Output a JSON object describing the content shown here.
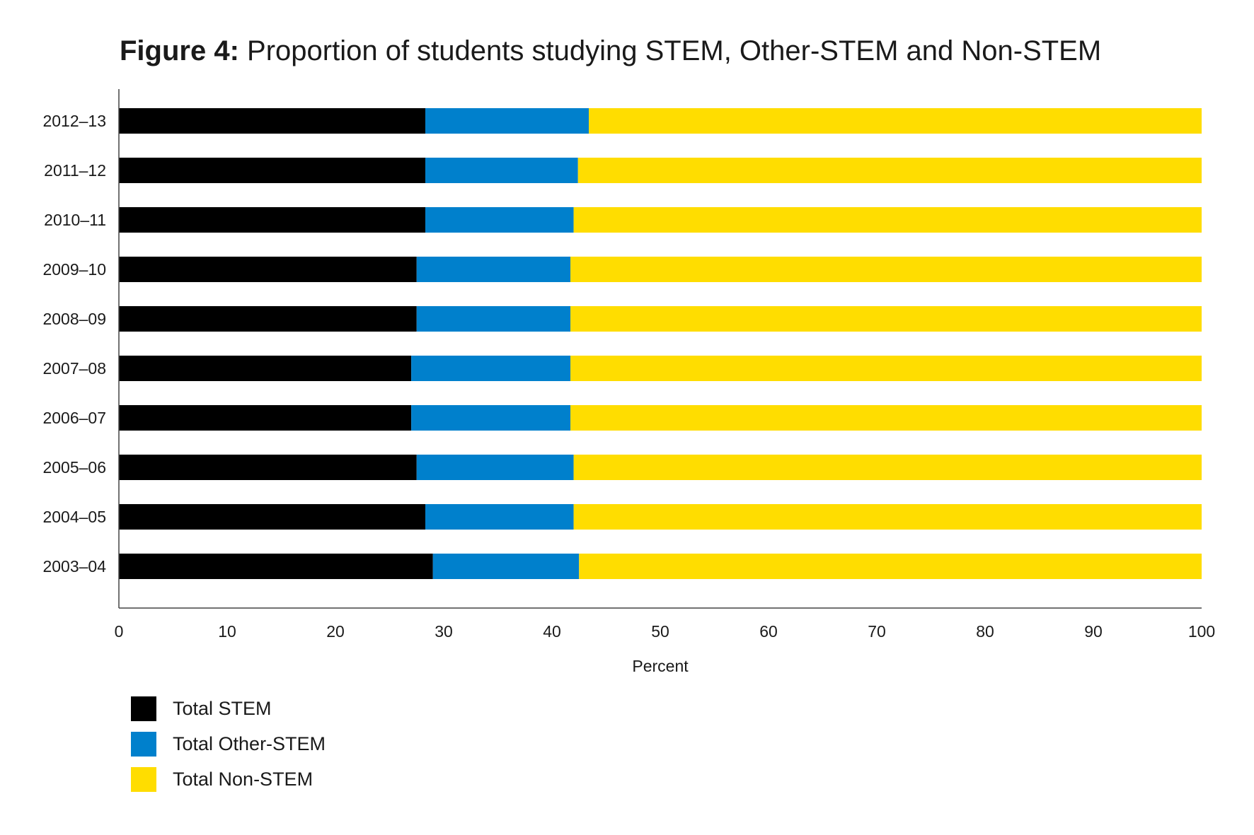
{
  "title": {
    "prefix": "Figure 4:",
    "text": "Proportion of students studying STEM, Other-STEM and Non-STEM"
  },
  "colors": {
    "stem": "#000000",
    "other_stem": "#0080cc",
    "non_stem": "#ffdd00",
    "axis": "#444444"
  },
  "chart_data": {
    "type": "bar",
    "orientation": "horizontal",
    "stacked": true,
    "categories": [
      "2012–13",
      "2011–12",
      "2010–11",
      "2009–10",
      "2008–09",
      "2007–08",
      "2006–07",
      "2005–06",
      "2004–05",
      "2003–04"
    ],
    "series": [
      {
        "name": "Total STEM",
        "color": "#000000",
        "values": [
          28.3,
          28.3,
          28.3,
          27.5,
          27.5,
          27.0,
          27.0,
          27.5,
          28.3,
          29.0
        ]
      },
      {
        "name": "Total Other-STEM",
        "color": "#0080cc",
        "values": [
          15.1,
          14.1,
          13.7,
          14.2,
          14.2,
          14.7,
          14.7,
          14.5,
          13.7,
          13.5
        ]
      },
      {
        "name": "Total Non-STEM",
        "color": "#ffdd00",
        "values": [
          56.6,
          57.6,
          58.0,
          58.3,
          58.3,
          58.3,
          58.3,
          58.0,
          58.0,
          57.5
        ]
      }
    ],
    "xlabel": "Percent",
    "ylabel": "",
    "xlim": [
      0,
      100
    ],
    "xticks": [
      0,
      10,
      20,
      30,
      40,
      50,
      60,
      70,
      80,
      90,
      100
    ],
    "grid": false,
    "legend_position": "bottom-left"
  }
}
